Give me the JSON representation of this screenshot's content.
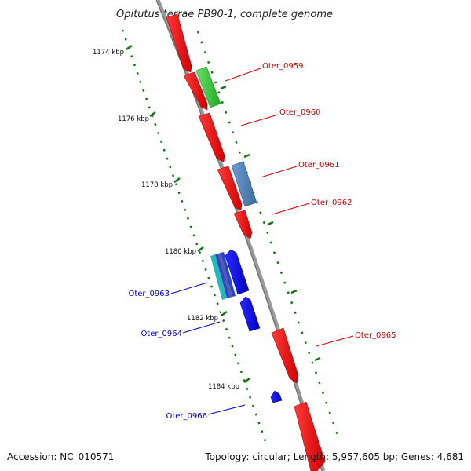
{
  "title": "Opitutus terrae PB90-1, complete genome",
  "footer": {
    "accession": "Accession: NC_010571",
    "topology": "Topology: circular; Length: 5,957,605 bp; Genes: 4,681"
  },
  "ticks": [
    {
      "label": "1174 kbp"
    },
    {
      "label": "1176 kbp"
    },
    {
      "label": "1178 kbp"
    },
    {
      "label": "1180 kbp"
    },
    {
      "label": "1182 kbp"
    },
    {
      "label": "1184 kbp"
    }
  ],
  "genes": [
    {
      "label": "Oter_0959"
    },
    {
      "label": "Oter_0960"
    },
    {
      "label": "Oter_0961"
    },
    {
      "label": "Oter_0962"
    },
    {
      "label": "Oter_0963"
    },
    {
      "label": "Oter_0964"
    },
    {
      "label": "Oter_0965"
    },
    {
      "label": "Oter_0966"
    }
  ],
  "colors": {
    "forward": "#ff0000",
    "reverse": "#0000ff",
    "green": "#33cc33",
    "steelblue": "#4f81b5",
    "teal": "#22bbbb",
    "backbone": "#888888",
    "dots": "#117711"
  }
}
